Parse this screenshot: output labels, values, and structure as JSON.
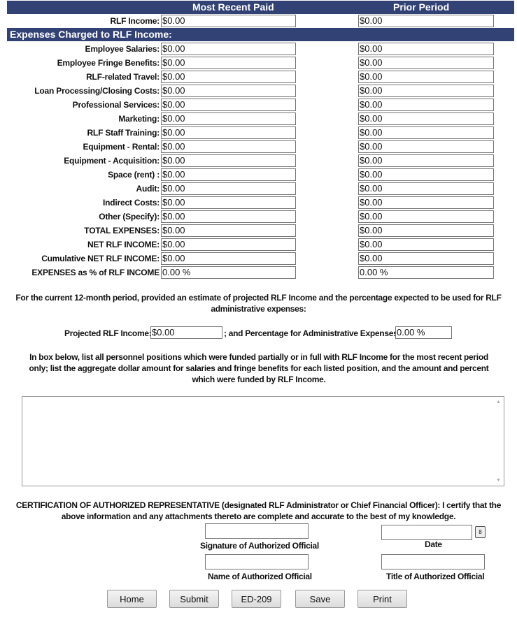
{
  "header": {
    "col1": "Most Recent Paid",
    "col2": "Prior Period"
  },
  "income": {
    "label": "RLF Income:",
    "recent": "$0.00",
    "prior": "$0.00"
  },
  "expenses_header": "Expenses Charged to RLF Income:",
  "expenses": [
    {
      "label": "Employee Salaries:",
      "recent": "$0.00",
      "prior": "$0.00"
    },
    {
      "label": "Employee Fringe Benefits:",
      "recent": "$0.00",
      "prior": "$0.00"
    },
    {
      "label": "RLF-related Travel:",
      "recent": "$0.00",
      "prior": "$0.00"
    },
    {
      "label": "Loan Processing/Closing Costs:",
      "recent": "$0.00",
      "prior": "$0.00"
    },
    {
      "label": "Professional Services:",
      "recent": "$0.00",
      "prior": "$0.00"
    },
    {
      "label": "Marketing:",
      "recent": "$0.00",
      "prior": "$0.00"
    },
    {
      "label": "RLF Staff Training:",
      "recent": "$0.00",
      "prior": "$0.00"
    },
    {
      "label": "Equipment - Rental:",
      "recent": "$0.00",
      "prior": "$0.00"
    },
    {
      "label": "Equipment - Acquisition:",
      "recent": "$0.00",
      "prior": "$0.00"
    },
    {
      "label": "Space (rent) :",
      "recent": "$0.00",
      "prior": "$0.00"
    },
    {
      "label": "Audit:",
      "recent": "$0.00",
      "prior": "$0.00"
    },
    {
      "label": "Indirect Costs:",
      "recent": "$0.00",
      "prior": "$0.00"
    },
    {
      "label": "Other (Specify):",
      "recent": "$0.00",
      "prior": "$0.00"
    },
    {
      "label": "TOTAL EXPENSES:",
      "recent": "$0.00",
      "prior": "$0.00"
    },
    {
      "label": "NET RLF INCOME:",
      "recent": "$0.00",
      "prior": "$0.00"
    },
    {
      "label": "Cumulative NET RLF INCOME:",
      "recent": "$0.00",
      "prior": "$0.00"
    },
    {
      "label": "EXPENSES as % of RLF INCOME",
      "recent": "0.00 %",
      "prior": "0.00 %"
    }
  ],
  "projection": {
    "intro": "For the current 12-month period, provided an estimate of projected RLF Income and the percentage expected to be used for RLF administrative expenses:",
    "income_label": "Projected RLF Income:",
    "income_value": "$0.00",
    "pct_label": "; and Percentage for Administrative Expenses:",
    "pct_value": "0.00 %"
  },
  "personnel": {
    "instructions": "In box below, list all personnel positions which were funded partially or in full with RLF Income for the most recent period only; list the aggregate dollar amount for salaries and fringe benefits for each listed position, and the amount and percent which were funded by RLF Income.",
    "value": ""
  },
  "certification": {
    "text": "CERTIFICATION OF AUTHORIZED REPRESENTATIVE (designated RLF Administrator or Chief Financial Officer): I certify that the above information and any attachments thereto are complete and accurate to the best of my knowledge.",
    "signature_label": "Signature of Authorized Official",
    "date_label": "Date",
    "name_label": "Name of Authorized Official",
    "title_label": "Title of Authorized Official",
    "calendar_icon": "calendar-icon"
  },
  "buttons": {
    "home": "Home",
    "submit": "Submit",
    "ed209": "ED-209",
    "save": "Save",
    "print": "Print"
  }
}
